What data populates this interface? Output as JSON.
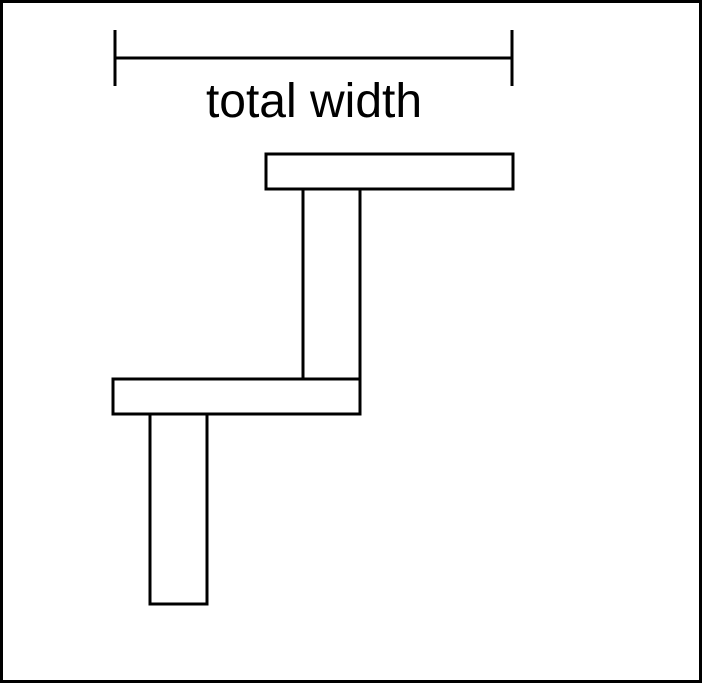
{
  "diagram": {
    "dimension_label": "total width",
    "colors": {
      "stroke": "#000000",
      "fill": "#ffffff",
      "background": "#ffffff"
    }
  }
}
